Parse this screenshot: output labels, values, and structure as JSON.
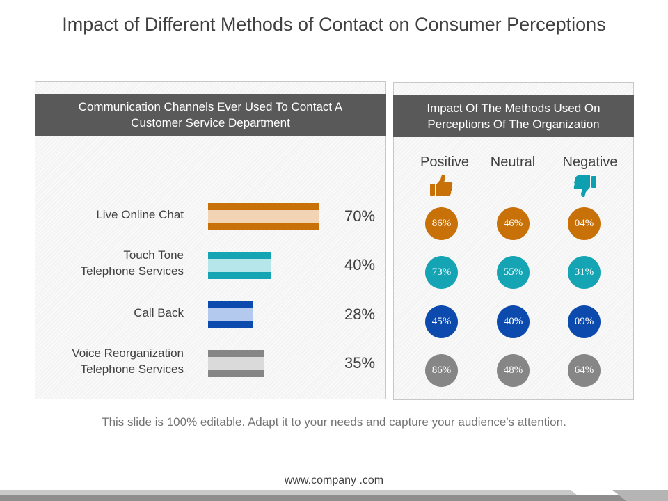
{
  "slide": {
    "title": "Impact of Different Methods of Contact on Consumer Perceptions",
    "caption": "This slide is 100% editable. Adapt it to your needs and capture your audience's attention.",
    "footer_url": "www.company .com"
  },
  "left_panel": {
    "header": "Communication Channels Ever Used To Contact A Customer Service Department"
  },
  "right_panel": {
    "header": "Impact Of The Methods Used On Perceptions Of The Organization",
    "columns": [
      "Positive",
      "Neutral",
      "Negative"
    ],
    "icons": [
      "thumbs-up-icon",
      "thumbs-down-icon"
    ],
    "icon_colors": {
      "positive": "#c87109",
      "negative": "#0e9fb0"
    }
  },
  "chart_data": [
    {
      "type": "bar",
      "orientation": "horizontal",
      "title": "Communication Channels Ever Used To Contact A Customer Service Department",
      "categories": [
        "Live Online Chat",
        "Touch Tone Telephone Services",
        "Call Back",
        "Voice Reorganization Telephone Services"
      ],
      "category_lines": [
        [
          "Live Online Chat"
        ],
        [
          "Touch Tone",
          "Telephone Services"
        ],
        [
          "Call Back"
        ],
        [
          "Voice Reorganization",
          "Telephone Services"
        ]
      ],
      "values": [
        70,
        40,
        28,
        35
      ],
      "value_labels": [
        "70%",
        "40%",
        "28%",
        "35%"
      ],
      "colors": [
        {
          "outer": "#c87109",
          "inner": "#f2d4b4"
        },
        {
          "outer": "#14a4b4",
          "inner": "#b6e5ea"
        },
        {
          "outer": "#0c4bad",
          "inner": "#b3c9ee"
        },
        {
          "outer": "#868686",
          "inner": "#dadada"
        }
      ]
    },
    {
      "type": "table",
      "title": "Impact Of The Methods Used On Perceptions Of The Organization",
      "columns": [
        "Positive",
        "Neutral",
        "Negative"
      ],
      "rows": [
        {
          "channel": "Live Online Chat",
          "values": [
            "86%",
            "46%",
            "04%"
          ],
          "color": "#c87109"
        },
        {
          "channel": "Touch Tone Telephone Services",
          "values": [
            "73%",
            "55%",
            "31%"
          ],
          "color": "#14a4b4"
        },
        {
          "channel": "Call Back",
          "values": [
            "45%",
            "40%",
            "09%"
          ],
          "color": "#0c4bad"
        },
        {
          "channel": "Voice Reorganization Telephone Services",
          "values": [
            "86%",
            "48%",
            "64%"
          ],
          "color": "#868686"
        }
      ]
    }
  ]
}
